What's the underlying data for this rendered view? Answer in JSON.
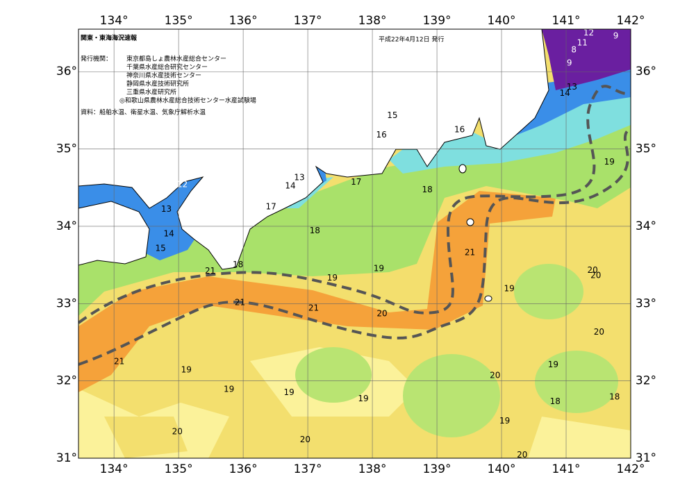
{
  "header": {
    "title": "関東・東海海況速報",
    "date": "平成22年4月12日 発行",
    "issuer_label": "発行機関：",
    "issuers": [
      "東京都島しょ農林水産総合センター",
      "千葉県水産総合研究センター",
      "神奈川県水産技術センター",
      "静岡県水産技術研究所",
      "三重県水産研究所",
      "◎和歌山県農林水産総合技術センター水産試験場"
    ],
    "sources": "資料：船舶水温、衛星水温、気象庁解析水温"
  },
  "map": {
    "lonlim": [
      133.45,
      142
    ],
    "latlim": [
      31,
      36.55
    ],
    "lon_ticks": [
      {
        "value": 134,
        "label": "134°"
      },
      {
        "value": 135,
        "label": "135°"
      },
      {
        "value": 136,
        "label": "136°"
      },
      {
        "value": 137,
        "label": "137°"
      },
      {
        "value": 138,
        "label": "138°"
      },
      {
        "value": 139,
        "label": "139°"
      },
      {
        "value": 140,
        "label": "140°"
      },
      {
        "value": 141,
        "label": "141°"
      },
      {
        "value": 142,
        "label": "142°"
      }
    ],
    "lat_ticks": [
      {
        "value": 31,
        "label": "31°"
      },
      {
        "value": 32,
        "label": "32°"
      },
      {
        "value": 33,
        "label": "33°"
      },
      {
        "value": 34,
        "label": "34°"
      },
      {
        "value": 35,
        "label": "35°"
      },
      {
        "value": 36,
        "label": "36°"
      }
    ],
    "contour_labels": [
      {
        "value": 12,
        "lon": 141.35,
        "lat": 36.5
      },
      {
        "value": 9,
        "lon": 141.77,
        "lat": 36.46
      },
      {
        "value": 11,
        "lon": 141.25,
        "lat": 36.37
      },
      {
        "value": 8,
        "lon": 141.12,
        "lat": 36.28
      },
      {
        "value": 9,
        "lon": 141.05,
        "lat": 36.11
      },
      {
        "value": 13,
        "lon": 141.09,
        "lat": 35.8
      },
      {
        "value": 14,
        "lon": 140.98,
        "lat": 35.72
      },
      {
        "value": 15,
        "lon": 138.31,
        "lat": 35.43
      },
      {
        "value": 16,
        "lon": 138.14,
        "lat": 35.18
      },
      {
        "value": 16,
        "lon": 139.35,
        "lat": 35.25
      },
      {
        "value": 17,
        "lon": 137.75,
        "lat": 34.57
      },
      {
        "value": 18,
        "lon": 138.85,
        "lat": 34.47
      },
      {
        "value": 19,
        "lon": 141.67,
        "lat": 34.83
      },
      {
        "value": 12,
        "lon": 135.06,
        "lat": 34.54
      },
      {
        "value": 13,
        "lon": 136.87,
        "lat": 34.63
      },
      {
        "value": 14,
        "lon": 136.73,
        "lat": 34.52
      },
      {
        "value": 13,
        "lon": 134.81,
        "lat": 34.22
      },
      {
        "value": 17,
        "lon": 136.43,
        "lat": 34.25
      },
      {
        "value": 14,
        "lon": 134.85,
        "lat": 33.9
      },
      {
        "value": 18,
        "lon": 137.11,
        "lat": 33.94
      },
      {
        "value": 15,
        "lon": 134.72,
        "lat": 33.71
      },
      {
        "value": 21,
        "lon": 139.51,
        "lat": 33.66
      },
      {
        "value": 18,
        "lon": 135.92,
        "lat": 33.5
      },
      {
        "value": 19,
        "lon": 138.1,
        "lat": 33.45
      },
      {
        "value": 21,
        "lon": 135.49,
        "lat": 33.42
      },
      {
        "value": 19,
        "lon": 137.38,
        "lat": 33.33
      },
      {
        "value": 20,
        "lon": 141.41,
        "lat": 33.43
      },
      {
        "value": 20,
        "lon": 141.46,
        "lat": 33.36
      },
      {
        "value": 19,
        "lon": 140.12,
        "lat": 33.19
      },
      {
        "value": 21,
        "lon": 135.95,
        "lat": 33.01
      },
      {
        "value": 21,
        "lon": 137.09,
        "lat": 32.94
      },
      {
        "value": 20,
        "lon": 138.15,
        "lat": 32.87
      },
      {
        "value": 20,
        "lon": 141.51,
        "lat": 32.63
      },
      {
        "value": 21,
        "lon": 134.08,
        "lat": 32.25
      },
      {
        "value": 19,
        "lon": 140.8,
        "lat": 32.21
      },
      {
        "value": 19,
        "lon": 135.12,
        "lat": 32.14
      },
      {
        "value": 20,
        "lon": 139.9,
        "lat": 32.07
      },
      {
        "value": 19,
        "lon": 135.78,
        "lat": 31.89
      },
      {
        "value": 19,
        "lon": 136.71,
        "lat": 31.85
      },
      {
        "value": 19,
        "lon": 137.86,
        "lat": 31.77
      },
      {
        "value": 18,
        "lon": 140.83,
        "lat": 31.73
      },
      {
        "value": 18,
        "lon": 141.75,
        "lat": 31.79
      },
      {
        "value": 19,
        "lon": 140.05,
        "lat": 31.48
      },
      {
        "value": 20,
        "lon": 134.98,
        "lat": 31.34
      },
      {
        "value": 20,
        "lon": 136.96,
        "lat": 31.24
      },
      {
        "value": 20,
        "lon": 140.32,
        "lat": 31.04
      }
    ]
  }
}
